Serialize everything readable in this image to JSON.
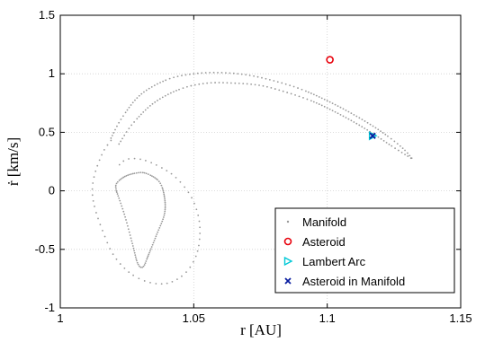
{
  "chart_data": {
    "type": "scatter",
    "title": "",
    "xlabel": "r [AU]",
    "ylabel": "ṙ [km/s]",
    "xlim": [
      1,
      1.15
    ],
    "ylim": [
      -1,
      1.5
    ],
    "xticks": [
      1,
      1.05,
      1.1,
      1.15
    ],
    "xtick_labels": [
      "1",
      "1.05",
      "1.1",
      "1.15"
    ],
    "yticks": [
      -1,
      -0.5,
      0,
      0.5,
      1,
      1.5
    ],
    "ytick_labels": [
      "-1",
      "-0.5",
      "0",
      "0.5",
      "1",
      "1.5"
    ],
    "grid": true,
    "legend_position": "bottom-right",
    "series": [
      {
        "name": "Manifold",
        "marker": "dot",
        "color": "#999999",
        "segments": [
          {
            "x": [
              1.019,
              1.016,
              1.013,
              1.012,
              1.013,
              1.016,
              1.02,
              1.026,
              1.033,
              1.04,
              1.046,
              1.05,
              1.052,
              1.052,
              1.049,
              1.043,
              1.036,
              1.03,
              1.025,
              1.022
            ],
            "y": [
              0.43,
              0.33,
              0.15,
              0.0,
              -0.15,
              -0.35,
              -0.55,
              -0.7,
              -0.78,
              -0.79,
              -0.72,
              -0.6,
              -0.45,
              -0.25,
              -0.05,
              0.12,
              0.22,
              0.27,
              0.27,
              0.22
            ]
          },
          {
            "x": [
              1.019,
              1.023,
              1.03,
              1.04,
              1.05,
              1.06,
              1.07,
              1.08,
              1.09,
              1.1,
              1.11,
              1.12,
              1.128,
              1.132
            ],
            "y": [
              0.45,
              0.62,
              0.82,
              0.95,
              1.0,
              1.01,
              0.99,
              0.94,
              0.87,
              0.77,
              0.65,
              0.51,
              0.37,
              0.27
            ]
          },
          {
            "x": [
              1.022,
              1.027,
              1.035,
              1.045,
              1.055,
              1.065,
              1.075,
              1.085,
              1.095,
              1.105,
              1.115,
              1.125,
              1.132
            ],
            "y": [
              0.4,
              0.57,
              0.75,
              0.87,
              0.92,
              0.92,
              0.9,
              0.84,
              0.76,
              0.65,
              0.52,
              0.37,
              0.27
            ]
          },
          {
            "x": [
              1.021,
              1.021,
              1.024,
              1.028,
              1.032,
              1.037,
              1.039,
              1.039,
              1.036,
              1.033,
              1.031,
              1.029,
              1.027,
              1.024,
              1.021
            ],
            "y": [
              0.0,
              0.06,
              0.12,
              0.15,
              0.15,
              0.08,
              -0.05,
              -0.2,
              -0.38,
              -0.55,
              -0.65,
              -0.62,
              -0.45,
              -0.2,
              0.0
            ]
          }
        ]
      },
      {
        "name": "Asteroid",
        "marker": "circle",
        "color": "#e8000b",
        "x": [
          1.101
        ],
        "y": [
          1.12
        ]
      },
      {
        "name": "Lambert Arc",
        "marker": "triangle-right",
        "color": "#00c8d7",
        "x": [
          1.117
        ],
        "y": [
          0.47
        ]
      },
      {
        "name": "Asteroid in Manifold",
        "marker": "x",
        "color": "#0a1ea0",
        "x": [
          1.117
        ],
        "y": [
          0.47
        ]
      }
    ]
  }
}
